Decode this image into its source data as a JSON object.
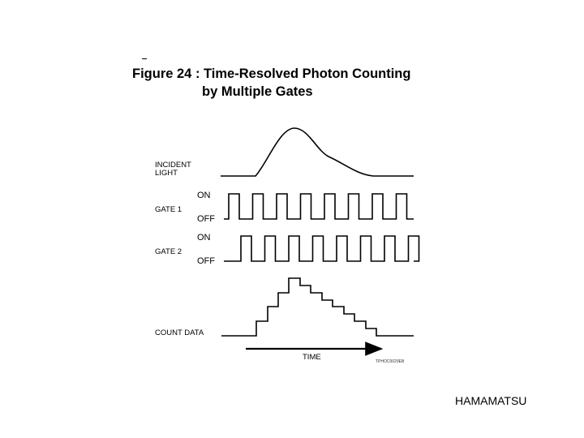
{
  "figure": {
    "title_line1": "Figure 24 : Time-Resolved Photon Counting",
    "title_line2": "by Multiple Gates"
  },
  "rows": {
    "incident": {
      "label_line1": "INCIDENT",
      "label_line2": "LIGHT"
    },
    "gate1": {
      "label": "GATE 1",
      "on": "ON",
      "off": "OFF"
    },
    "gate2": {
      "label": "GATE 2",
      "on": "ON",
      "off": "OFF"
    },
    "count": {
      "label": "COUNT DATA"
    }
  },
  "axis": {
    "label": "TIME"
  },
  "figure_code": "TPHOC0029EB",
  "footer": {
    "brand": "HAMAMATSU"
  }
}
